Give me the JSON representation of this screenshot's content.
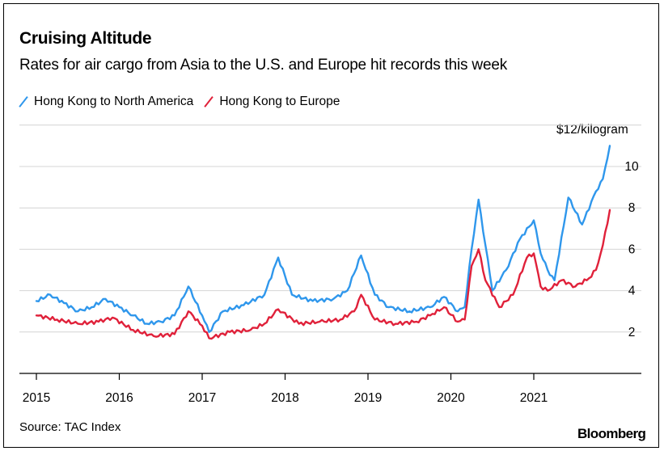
{
  "header": {
    "title": "Cruising Altitude",
    "subtitle": "Rates for air cargo from Asia to the U.S. and Europe hit records this week"
  },
  "footer": {
    "source": "Source: TAC Index",
    "brand": "Bloomberg"
  },
  "colors": {
    "north_america": "#2f97ec",
    "europe": "#e0213a"
  },
  "chart_data": {
    "type": "line",
    "title": "Cruising Altitude",
    "subtitle": "Rates for air cargo from Asia to the U.S. and Europe hit records this week",
    "unit_label": "$12/kilogram",
    "xlabel": "",
    "ylabel": "",
    "x_ticks": [
      "2015",
      "2016",
      "2017",
      "2018",
      "2019",
      "2020",
      "2021"
    ],
    "y_ticks": [
      "2",
      "4",
      "6",
      "8",
      "10",
      "$12/kilogram"
    ],
    "ylim": [
      0,
      12
    ],
    "xlim": [
      "2015-01",
      "2021-12"
    ],
    "grid": true,
    "legend_position": "top-left",
    "series": [
      {
        "name": "Hong Kong to North America",
        "points": [
          [
            "2015-01",
            3.5
          ],
          [
            "2015-03",
            3.8
          ],
          [
            "2015-05",
            3.4
          ],
          [
            "2015-07",
            3.0
          ],
          [
            "2015-09",
            3.2
          ],
          [
            "2015-11",
            3.6
          ],
          [
            "2016-01",
            3.2
          ],
          [
            "2016-03",
            2.8
          ],
          [
            "2016-05",
            2.4
          ],
          [
            "2016-07",
            2.5
          ],
          [
            "2016-09",
            2.8
          ],
          [
            "2016-11",
            4.2
          ],
          [
            "2017-01",
            2.8
          ],
          [
            "2017-02",
            2.0
          ],
          [
            "2017-04",
            3.0
          ],
          [
            "2017-07",
            3.3
          ],
          [
            "2017-10",
            3.8
          ],
          [
            "2017-12",
            5.6
          ],
          [
            "2018-02",
            3.8
          ],
          [
            "2018-05",
            3.5
          ],
          [
            "2018-08",
            3.6
          ],
          [
            "2018-10",
            4.0
          ],
          [
            "2018-12",
            5.7
          ],
          [
            "2019-02",
            3.8
          ],
          [
            "2019-04",
            3.2
          ],
          [
            "2019-07",
            3.0
          ],
          [
            "2019-10",
            3.2
          ],
          [
            "2019-12",
            3.7
          ],
          [
            "2020-02",
            3.0
          ],
          [
            "2020-03",
            3.2
          ],
          [
            "2020-04",
            6.0
          ],
          [
            "2020-05",
            8.4
          ],
          [
            "2020-06",
            6.2
          ],
          [
            "2020-07",
            4.0
          ],
          [
            "2020-09",
            5.0
          ],
          [
            "2020-11",
            6.5
          ],
          [
            "2021-01",
            7.4
          ],
          [
            "2021-02",
            5.8
          ],
          [
            "2021-03",
            5.0
          ],
          [
            "2021-04",
            4.5
          ],
          [
            "2021-06",
            8.5
          ],
          [
            "2021-08",
            7.2
          ],
          [
            "2021-10",
            8.8
          ],
          [
            "2021-11",
            9.4
          ],
          [
            "2021-12",
            11.0
          ]
        ]
      },
      {
        "name": "Hong Kong to Europe",
        "points": [
          [
            "2015-01",
            2.8
          ],
          [
            "2015-04",
            2.6
          ],
          [
            "2015-07",
            2.4
          ],
          [
            "2015-10",
            2.5
          ],
          [
            "2015-12",
            2.7
          ],
          [
            "2016-03",
            2.1
          ],
          [
            "2016-06",
            1.8
          ],
          [
            "2016-09",
            1.9
          ],
          [
            "2016-11",
            3.0
          ],
          [
            "2017-01",
            2.3
          ],
          [
            "2017-02",
            1.7
          ],
          [
            "2017-05",
            2.0
          ],
          [
            "2017-08",
            2.1
          ],
          [
            "2017-10",
            2.4
          ],
          [
            "2017-12",
            3.1
          ],
          [
            "2018-03",
            2.4
          ],
          [
            "2018-06",
            2.5
          ],
          [
            "2018-09",
            2.6
          ],
          [
            "2018-11",
            3.0
          ],
          [
            "2018-12",
            3.8
          ],
          [
            "2019-02",
            2.6
          ],
          [
            "2019-05",
            2.4
          ],
          [
            "2019-08",
            2.5
          ],
          [
            "2019-10",
            2.8
          ],
          [
            "2019-12",
            3.2
          ],
          [
            "2020-02",
            2.5
          ],
          [
            "2020-03",
            2.6
          ],
          [
            "2020-04",
            5.2
          ],
          [
            "2020-05",
            6.0
          ],
          [
            "2020-06",
            4.5
          ],
          [
            "2020-08",
            3.2
          ],
          [
            "2020-10",
            3.8
          ],
          [
            "2020-12",
            5.6
          ],
          [
            "2021-01",
            5.8
          ],
          [
            "2021-02",
            4.2
          ],
          [
            "2021-03",
            4.0
          ],
          [
            "2021-05",
            4.5
          ],
          [
            "2021-07",
            4.2
          ],
          [
            "2021-09",
            4.6
          ],
          [
            "2021-10",
            5.0
          ],
          [
            "2021-11",
            6.2
          ],
          [
            "2021-12",
            7.9
          ]
        ]
      }
    ]
  }
}
